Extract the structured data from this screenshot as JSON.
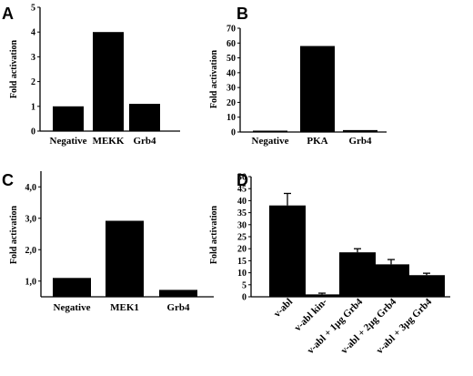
{
  "chart_data": [
    {
      "panel": "A",
      "type": "bar",
      "categories": [
        "Negative",
        "MEKK",
        "Grb4"
      ],
      "values": [
        1.0,
        4.0,
        1.1
      ],
      "ylabel": "Fold activation",
      "ylim": [
        0,
        5
      ],
      "yticks": [
        "0",
        "1",
        "2",
        "3",
        "4",
        "5"
      ],
      "ytick_values": [
        0,
        1,
        2,
        3,
        4,
        5
      ],
      "grid": false
    },
    {
      "panel": "B",
      "type": "bar",
      "categories": [
        "Negative",
        "PKA",
        "Grb4"
      ],
      "values": [
        0.8,
        58,
        1.3
      ],
      "ylabel": "Fold activation",
      "ylim": [
        0,
        70
      ],
      "yticks": [
        "0",
        "10",
        "20",
        "30",
        "40",
        "50",
        "60",
        "70"
      ],
      "ytick_values": [
        0,
        10,
        20,
        30,
        40,
        50,
        60,
        70
      ],
      "grid": false
    },
    {
      "panel": "C",
      "type": "bar",
      "categories": [
        "Negative",
        "MEK1",
        "Grb4"
      ],
      "values": [
        1.1,
        2.92,
        0.72
      ],
      "ylabel": "Fold activation",
      "ylim": [
        0.5,
        4.5
      ],
      "yticks": [
        "1,0",
        "2,0",
        "3,0",
        "4,0"
      ],
      "ytick_values": [
        1,
        2,
        3,
        4
      ],
      "grid": false
    },
    {
      "panel": "D",
      "type": "bar",
      "categories": [
        "v-abl",
        "v-abl kin-",
        "v-abl + 1µg Grb4",
        "v-abl + 2µg Grb4",
        "v-abl + 3µg Grb4"
      ],
      "values": [
        38,
        1,
        18.5,
        13.5,
        9
      ],
      "errors": [
        5,
        0.5,
        1.5,
        2,
        0.8
      ],
      "ylabel": "Fold activation",
      "ylim": [
        0,
        50
      ],
      "yticks": [
        "0",
        "5",
        "10",
        "15",
        "20",
        "25",
        "30",
        "35",
        "40",
        "45",
        "50"
      ],
      "ytick_values": [
        0,
        5,
        10,
        15,
        20,
        25,
        30,
        35,
        40,
        45,
        50
      ],
      "grid": false
    }
  ]
}
